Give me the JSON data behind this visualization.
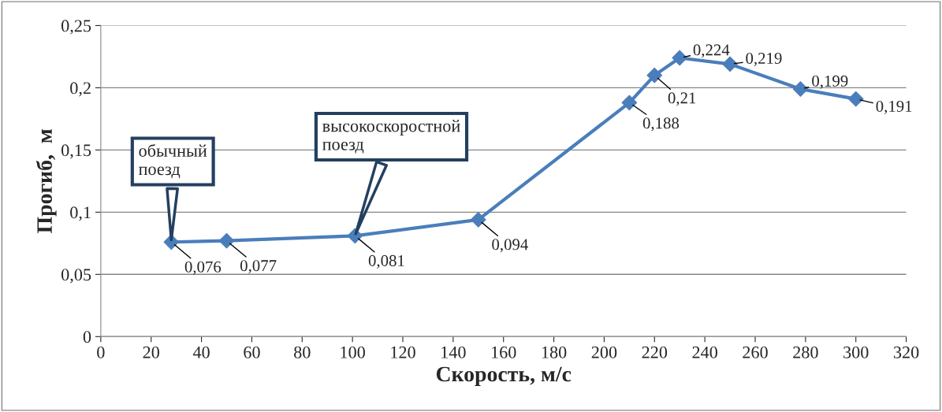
{
  "chart_data": {
    "type": "line",
    "xlabel": "Скорость, м/с",
    "ylabel": "Прогиб,  м",
    "x": [
      28,
      50,
      101,
      150,
      210,
      220,
      230,
      250,
      278,
      300
    ],
    "series": [
      {
        "color": "#4a7ebb",
        "values": [
          0.076,
          0.077,
          0.081,
          0.094,
          0.188,
          0.21,
          0.224,
          0.219,
          0.199,
          0.191
        ],
        "value_labels": [
          "0,076",
          "0,077",
          "0,081",
          "0,094",
          "0,188",
          "0,21",
          "0,224",
          "0,219",
          "0,199",
          "0,191"
        ]
      }
    ],
    "xlim": [
      0,
      320
    ],
    "xticks": [
      0,
      20,
      40,
      60,
      80,
      100,
      120,
      140,
      160,
      180,
      200,
      220,
      240,
      260,
      280,
      300,
      320
    ],
    "ylim": [
      0,
      0.25
    ],
    "yticks": [
      0,
      {
        "value": 0.05,
        "label": "0,05"
      },
      {
        "value": 0.1,
        "label": "0,1"
      },
      {
        "value": 0.15,
        "label": "0,15"
      },
      {
        "value": 0.2,
        "label": "0,2"
      },
      {
        "value": 0.25,
        "label": "0,25"
      }
    ],
    "grid": "y",
    "marker": "diamond",
    "line_style": "solid",
    "legend": false,
    "annotations": [
      {
        "text": "обычный\nпоезд",
        "x": 28,
        "y": 0.076
      },
      {
        "text": "высокоскоростной\nпоезд",
        "x": 101,
        "y": 0.081
      }
    ]
  }
}
